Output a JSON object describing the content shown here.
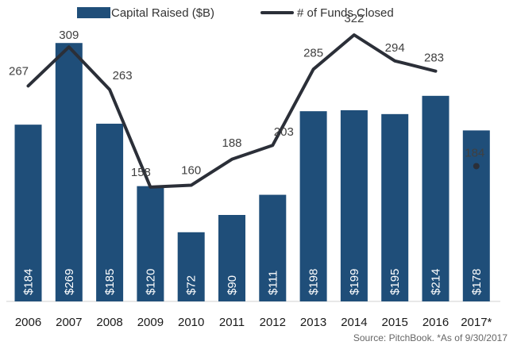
{
  "chart_data": {
    "type": "bar",
    "categories": [
      "2006",
      "2007",
      "2008",
      "2009",
      "2010",
      "2011",
      "2012",
      "2013",
      "2014",
      "2015",
      "2016",
      "2017*"
    ],
    "series": [
      {
        "name": "Capital Raised ($B)",
        "type": "bar",
        "values": [
          184,
          269,
          185,
          120,
          72,
          90,
          111,
          198,
          199,
          195,
          214,
          178
        ],
        "labels": [
          "$184",
          "$269",
          "$185",
          "$120",
          "$72",
          "$90",
          "$111",
          "$198",
          "$199",
          "$195",
          "$214",
          "$178"
        ],
        "color": "#1f4e79"
      },
      {
        "name": "# of Funds Closed",
        "type": "line",
        "values": [
          267,
          309,
          263,
          158,
          160,
          188,
          203,
          285,
          322,
          294,
          283,
          184
        ],
        "labels": [
          "267",
          "309",
          "263",
          "158",
          "160",
          "188",
          "203",
          "285",
          "322",
          "294",
          "283",
          "184"
        ],
        "color": "#2b2f38"
      }
    ],
    "legend_position": "top",
    "grid": false,
    "source_note": "Source: PitchBook. *As of 9/30/2017"
  }
}
